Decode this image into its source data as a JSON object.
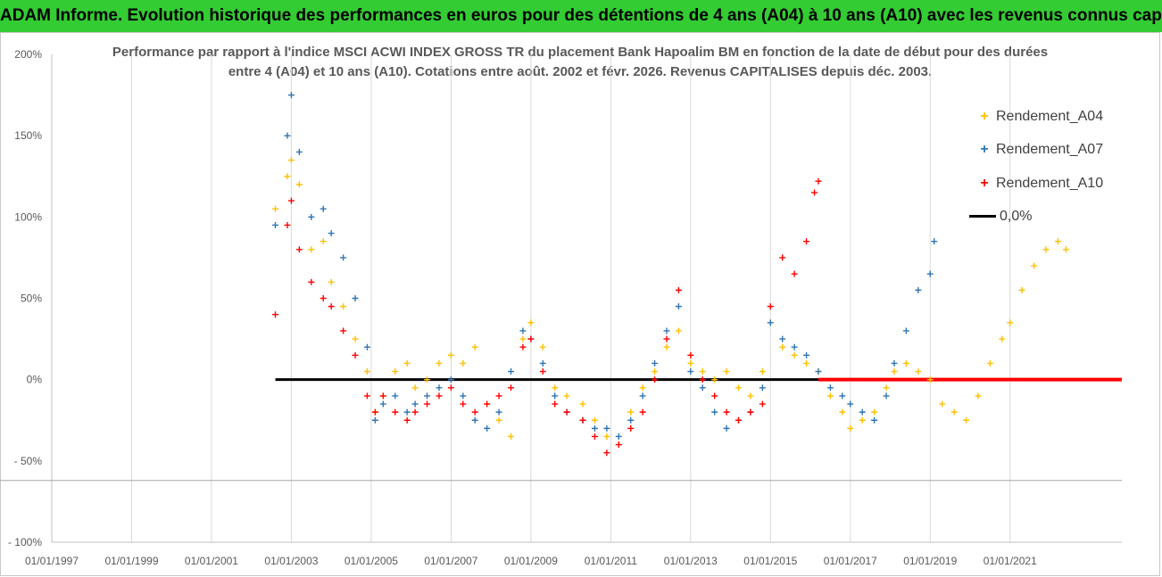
{
  "banner": {
    "title": "ADAM Informe. Evolution historique des performances en euros pour des détentions de 4 ans (A04) à 10 ans (A10) avec les revenus connus capitalisés"
  },
  "chart_data": {
    "type": "scatter",
    "title_line1": "Performance par rapport à l'indice MSCI ACWI INDEX GROSS TR  du placement Bank Hapoalim BM en fonction de la date de début pour des durées",
    "title_line2": "entre 4 (A04) et 10 ans (A10). Cotations entre août. 2002 et févr. 2026. Revenus CAPITALISES depuis déc. 2003.",
    "xlabel": "",
    "ylabel": "",
    "xlim": [
      1997.0,
      2023.8
    ],
    "ylim": [
      -100,
      200
    ],
    "y_ticks": [
      {
        "value": 200,
        "label": "200%"
      },
      {
        "value": 150,
        "label": "150%"
      },
      {
        "value": 100,
        "label": "100%"
      },
      {
        "value": 50,
        "label": "50%"
      },
      {
        "value": 0,
        "label": "0%"
      },
      {
        "value": -50,
        "label": "- 50%"
      },
      {
        "value": -100,
        "label": "- 100%"
      }
    ],
    "x_ticks": [
      {
        "value": 1997,
        "label": "01/01/1997"
      },
      {
        "value": 1999,
        "label": "01/01/1999"
      },
      {
        "value": 2001,
        "label": "01/01/2001"
      },
      {
        "value": 2003,
        "label": "01/01/2003"
      },
      {
        "value": 2005,
        "label": "01/01/2005"
      },
      {
        "value": 2007,
        "label": "01/01/2007"
      },
      {
        "value": 2009,
        "label": "01/01/2009"
      },
      {
        "value": 2011,
        "label": "01/01/2011"
      },
      {
        "value": 2013,
        "label": "01/01/2013"
      },
      {
        "value": 2015,
        "label": "01/01/2015"
      },
      {
        "value": 2017,
        "label": "01/01/2017"
      },
      {
        "value": 2019,
        "label": "01/01/2019"
      },
      {
        "value": 2021,
        "label": "01/01/2021"
      }
    ],
    "reference_level": -62,
    "series": [
      {
        "name": "Rendement_A04",
        "color": "#ffc000",
        "marker": "+",
        "points": [
          [
            2002.6,
            105
          ],
          [
            2002.9,
            125
          ],
          [
            2003.0,
            135
          ],
          [
            2003.2,
            120
          ],
          [
            2003.5,
            80
          ],
          [
            2003.8,
            85
          ],
          [
            2004.0,
            60
          ],
          [
            2004.3,
            45
          ],
          [
            2004.6,
            25
          ],
          [
            2004.9,
            5
          ],
          [
            2005.1,
            -20
          ],
          [
            2005.3,
            -10
          ],
          [
            2005.6,
            5
          ],
          [
            2005.9,
            10
          ],
          [
            2006.1,
            -5
          ],
          [
            2006.4,
            0
          ],
          [
            2006.7,
            10
          ],
          [
            2007.0,
            15
          ],
          [
            2007.3,
            10
          ],
          [
            2007.6,
            20
          ],
          [
            2007.9,
            -15
          ],
          [
            2008.2,
            -25
          ],
          [
            2008.5,
            -35
          ],
          [
            2008.8,
            25
          ],
          [
            2009.0,
            35
          ],
          [
            2009.3,
            20
          ],
          [
            2009.6,
            -5
          ],
          [
            2009.9,
            -10
          ],
          [
            2010.3,
            -15
          ],
          [
            2010.6,
            -25
          ],
          [
            2010.9,
            -35
          ],
          [
            2011.2,
            -40
          ],
          [
            2011.5,
            -20
          ],
          [
            2011.8,
            -5
          ],
          [
            2012.1,
            5
          ],
          [
            2012.4,
            20
          ],
          [
            2012.7,
            30
          ],
          [
            2013.0,
            10
          ],
          [
            2013.3,
            5
          ],
          [
            2013.6,
            0
          ],
          [
            2013.9,
            5
          ],
          [
            2014.2,
            -5
          ],
          [
            2014.5,
            -10
          ],
          [
            2014.8,
            5
          ],
          [
            2015.0,
            35
          ],
          [
            2015.3,
            20
          ],
          [
            2015.6,
            15
          ],
          [
            2015.9,
            10
          ],
          [
            2016.2,
            5
          ],
          [
            2016.5,
            -10
          ],
          [
            2016.8,
            -20
          ],
          [
            2017.0,
            -30
          ],
          [
            2017.3,
            -25
          ],
          [
            2017.6,
            -20
          ],
          [
            2017.9,
            -5
          ],
          [
            2018.1,
            5
          ],
          [
            2018.4,
            10
          ],
          [
            2018.7,
            5
          ],
          [
            2019.0,
            0
          ],
          [
            2019.3,
            -15
          ],
          [
            2019.6,
            -20
          ],
          [
            2019.9,
            -25
          ],
          [
            2020.2,
            -10
          ],
          [
            2020.5,
            10
          ],
          [
            2020.8,
            25
          ],
          [
            2021.0,
            35
          ],
          [
            2021.3,
            55
          ],
          [
            2021.6,
            70
          ],
          [
            2021.9,
            80
          ],
          [
            2022.2,
            85
          ],
          [
            2022.4,
            80
          ]
        ]
      },
      {
        "name": "Rendement_A07",
        "color": "#2e75b6",
        "marker": "+",
        "points": [
          [
            2002.6,
            95
          ],
          [
            2002.9,
            150
          ],
          [
            2003.0,
            175
          ],
          [
            2003.2,
            140
          ],
          [
            2003.5,
            100
          ],
          [
            2003.8,
            105
          ],
          [
            2004.0,
            90
          ],
          [
            2004.3,
            75
          ],
          [
            2004.6,
            50
          ],
          [
            2004.9,
            20
          ],
          [
            2005.1,
            -25
          ],
          [
            2005.3,
            -15
          ],
          [
            2005.6,
            -10
          ],
          [
            2005.9,
            -20
          ],
          [
            2006.1,
            -15
          ],
          [
            2006.4,
            -10
          ],
          [
            2006.7,
            -5
          ],
          [
            2007.0,
            0
          ],
          [
            2007.3,
            -10
          ],
          [
            2007.6,
            -25
          ],
          [
            2007.9,
            -30
          ],
          [
            2008.2,
            -20
          ],
          [
            2008.5,
            5
          ],
          [
            2008.8,
            30
          ],
          [
            2009.0,
            25
          ],
          [
            2009.3,
            10
          ],
          [
            2009.6,
            -10
          ],
          [
            2009.9,
            -20
          ],
          [
            2010.3,
            -25
          ],
          [
            2010.6,
            -30
          ],
          [
            2010.9,
            -30
          ],
          [
            2011.2,
            -35
          ],
          [
            2011.5,
            -25
          ],
          [
            2011.8,
            -10
          ],
          [
            2012.1,
            10
          ],
          [
            2012.4,
            30
          ],
          [
            2012.7,
            45
          ],
          [
            2013.0,
            5
          ],
          [
            2013.3,
            -5
          ],
          [
            2013.6,
            -20
          ],
          [
            2013.9,
            -30
          ],
          [
            2014.2,
            -25
          ],
          [
            2014.5,
            -20
          ],
          [
            2014.8,
            -5
          ],
          [
            2015.0,
            35
          ],
          [
            2015.3,
            25
          ],
          [
            2015.6,
            20
          ],
          [
            2015.9,
            15
          ],
          [
            2016.2,
            5
          ],
          [
            2016.5,
            -5
          ],
          [
            2016.8,
            -10
          ],
          [
            2017.0,
            -15
          ],
          [
            2017.3,
            -20
          ],
          [
            2017.6,
            -25
          ],
          [
            2017.9,
            -10
          ],
          [
            2018.1,
            10
          ],
          [
            2018.4,
            30
          ],
          [
            2018.7,
            55
          ],
          [
            2019.0,
            65
          ],
          [
            2019.1,
            85
          ]
        ]
      },
      {
        "name": "Rendement_A10",
        "color": "#ff0000",
        "marker": "+",
        "points": [
          [
            2002.6,
            40
          ],
          [
            2002.9,
            95
          ],
          [
            2003.0,
            110
          ],
          [
            2003.2,
            80
          ],
          [
            2003.5,
            60
          ],
          [
            2003.8,
            50
          ],
          [
            2004.0,
            45
          ],
          [
            2004.3,
            30
          ],
          [
            2004.6,
            15
          ],
          [
            2004.9,
            -10
          ],
          [
            2005.1,
            -20
          ],
          [
            2005.3,
            -10
          ],
          [
            2005.6,
            -20
          ],
          [
            2005.9,
            -25
          ],
          [
            2006.1,
            -20
          ],
          [
            2006.4,
            -15
          ],
          [
            2006.7,
            -10
          ],
          [
            2007.0,
            -5
          ],
          [
            2007.3,
            -15
          ],
          [
            2007.6,
            -20
          ],
          [
            2007.9,
            -15
          ],
          [
            2008.2,
            -10
          ],
          [
            2008.5,
            -5
          ],
          [
            2008.8,
            20
          ],
          [
            2009.0,
            25
          ],
          [
            2009.3,
            5
          ],
          [
            2009.6,
            -15
          ],
          [
            2009.9,
            -20
          ],
          [
            2010.3,
            -25
          ],
          [
            2010.6,
            -35
          ],
          [
            2010.9,
            -45
          ],
          [
            2011.2,
            -40
          ],
          [
            2011.5,
            -30
          ],
          [
            2011.8,
            -20
          ],
          [
            2012.1,
            0
          ],
          [
            2012.4,
            25
          ],
          [
            2012.7,
            55
          ],
          [
            2013.0,
            15
          ],
          [
            2013.3,
            0
          ],
          [
            2013.6,
            -10
          ],
          [
            2013.9,
            -20
          ],
          [
            2014.2,
            -25
          ],
          [
            2014.5,
            -20
          ],
          [
            2014.8,
            -15
          ],
          [
            2015.0,
            45
          ],
          [
            2015.3,
            75
          ],
          [
            2015.6,
            65
          ],
          [
            2015.9,
            85
          ],
          [
            2016.1,
            115
          ],
          [
            2016.2,
            122
          ]
        ]
      },
      {
        "name": "0,0%",
        "color": "#000000",
        "marker": "line",
        "points": [
          [
            2002.6,
            0
          ],
          [
            2023.8,
            0
          ]
        ]
      }
    ],
    "flat_red_segment": {
      "x_start": 2016.2,
      "x_end": 2023.8,
      "value": 0
    },
    "legend": [
      {
        "label": "Rendement_A04",
        "color": "#ffc000",
        "marker": "+"
      },
      {
        "label": "Rendement_A07",
        "color": "#2e75b6",
        "marker": "+"
      },
      {
        "label": "Rendement_A10",
        "color": "#ff0000",
        "marker": "+"
      },
      {
        "label": "0,0%",
        "color": "#000000",
        "marker": "line"
      }
    ]
  }
}
